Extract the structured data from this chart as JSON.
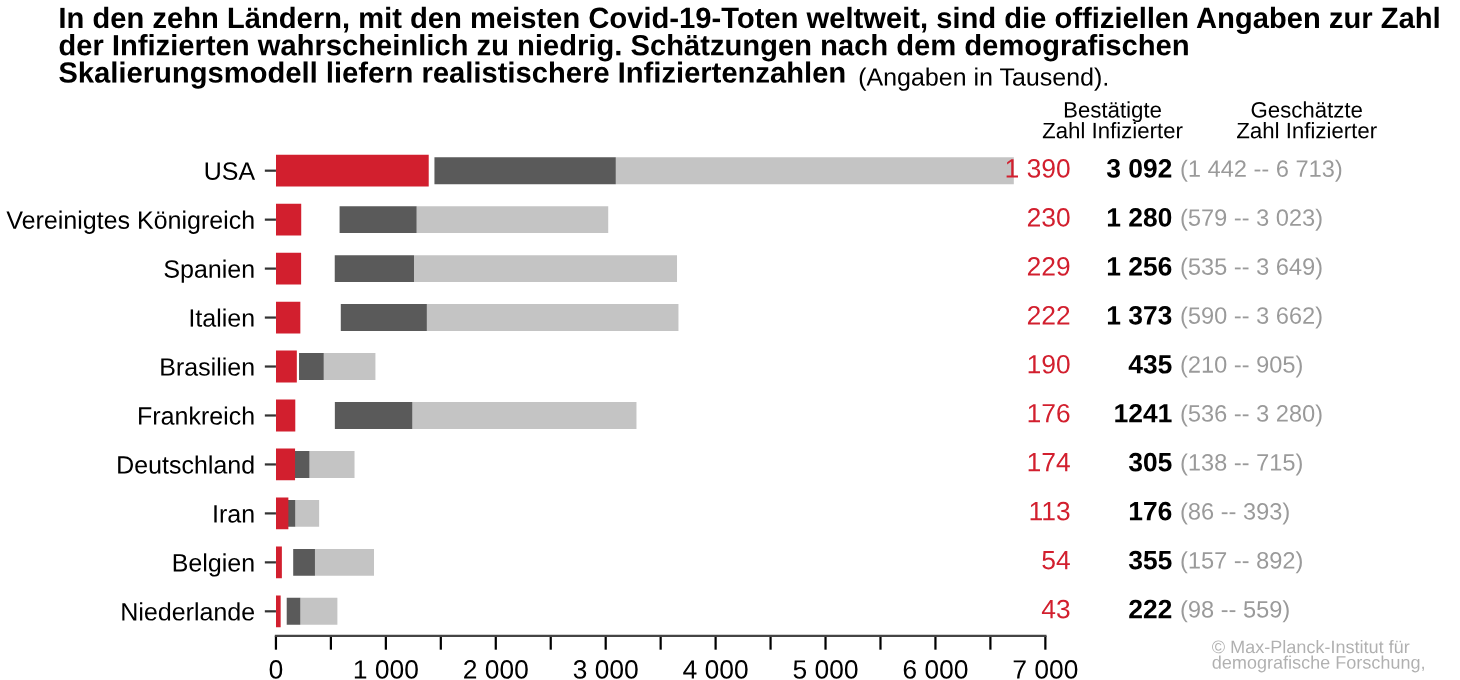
{
  "chart_data": {
    "type": "bar",
    "orientation": "horizontal",
    "title": "In den zehn Ländern, mit den meisten Covid-19-Toten weltweit, sind die offiziellen Angaben zur Zahl der Infizierten wahrscheinlich zu niedrig. Schätzungen nach dem demografischen Skalierungsmodell liefern realistischere Infiziertenzahlen",
    "subtitle": "(Angaben in Tausend).",
    "categories": [
      "USA",
      "Vereinigtes Königreich",
      "Spanien",
      "Italien",
      "Brasilien",
      "Frankreich",
      "Deutschland",
      "Iran",
      "Belgien",
      "Niederlande"
    ],
    "series": [
      {
        "color": "#d21f2e",
        "values": [
          1390,
          230,
          229,
          222,
          190,
          176,
          174,
          113,
          54,
          43
        ],
        "value_labels": [
          "1 390",
          "230",
          "229",
          "222",
          "190",
          "176",
          "174",
          "113",
          "54",
          "43"
        ]
      },
      {
        "color": "#5a5a5a",
        "base": [
          1442,
          579,
          535,
          590,
          210,
          536,
          138,
          86,
          157,
          98
        ],
        "values": [
          1650,
          701,
          721,
          783,
          225,
          705,
          167,
          90,
          198,
          124
        ]
      },
      {
        "color": "#c4c4c4",
        "base": [
          3092,
          1280,
          1256,
          1373,
          435,
          1241,
          305,
          176,
          355,
          222
        ],
        "values": [
          3621,
          1743,
          2393,
          2289,
          470,
          2039,
          410,
          217,
          537,
          337
        ]
      }
    ],
    "xlim": [
      0,
      7000
    ],
    "xticks": [
      0,
      {
        "value": 500,
        "label": null
      },
      {
        "value": 1000,
        "label": "1 000"
      },
      {
        "value": 1500,
        "label": null
      },
      {
        "value": 2000,
        "label": "2 000"
      },
      {
        "value": 2500,
        "label": null
      },
      {
        "value": 3000,
        "label": "3 000"
      },
      {
        "value": 3500,
        "label": null
      },
      {
        "value": 4000,
        "label": "4 000"
      },
      {
        "value": 4500,
        "label": null
      },
      {
        "value": 5000,
        "label": "5 000"
      },
      {
        "value": 5500,
        "label": null
      },
      {
        "value": 6000,
        "label": "6 000"
      },
      {
        "value": 6500,
        "label": null
      },
      {
        "value": 7000,
        "label": "7 000"
      }
    ],
    "grid": false,
    "legend": false,
    "annotations": [
      "Bestätigte\nZahl Infizierter",
      "Geschätzte\nZahl Infizierter",
      "© Max-Planck-Institut für\ndemografische Forschung,",
      "3 092",
      "1 280",
      "1 256",
      "1 373",
      "435",
      "1241",
      "305",
      "176",
      "355",
      "222",
      "(1 442 -- 6 713)",
      "(579 -- 3 023)",
      "(535 -- 3 649)",
      "(590 -- 3 662)",
      "(210 -- 905)",
      "(536 -- 3 280)",
      "(138 -- 715)",
      "(86 -- 393)",
      "(157 -- 892)",
      "(98 -- 559)"
    ]
  }
}
